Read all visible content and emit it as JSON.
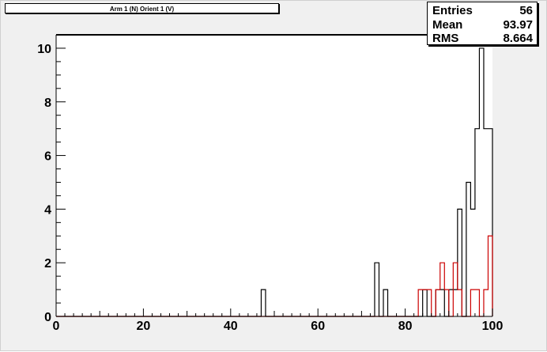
{
  "chart_data": {
    "type": "histogram",
    "title": "Arm 1 (N) Orient 1 (V)",
    "xlim": [
      0,
      100
    ],
    "ylim": [
      0,
      10.5
    ],
    "x_ticks": [
      0,
      20,
      40,
      60,
      80,
      100
    ],
    "y_ticks": [
      0,
      2,
      4,
      6,
      8,
      10
    ],
    "bin_width": 1,
    "grid": false,
    "stats": {
      "entries_label": "Entries",
      "entries": "56",
      "mean_label": "Mean",
      "mean": "93.97",
      "rms_label": "RMS",
      "rms": "8.664"
    },
    "series": [
      {
        "color": "#000000",
        "bins": [
          [
            47,
            1
          ],
          [
            73,
            2
          ],
          [
            75,
            1
          ],
          [
            84,
            1
          ],
          [
            87,
            1
          ],
          [
            88,
            1
          ],
          [
            90,
            1
          ],
          [
            91,
            1
          ],
          [
            92,
            4
          ],
          [
            94,
            5
          ],
          [
            95,
            4
          ],
          [
            96,
            7
          ],
          [
            97,
            10
          ],
          [
            98,
            7
          ],
          [
            99,
            7
          ]
        ]
      },
      {
        "color": "#cc0000",
        "bins": [
          [
            83,
            1
          ],
          [
            84,
            1
          ],
          [
            85,
            1
          ],
          [
            87,
            1
          ],
          [
            88,
            2
          ],
          [
            89,
            1
          ],
          [
            91,
            2
          ],
          [
            92,
            1
          ],
          [
            95,
            1
          ],
          [
            96,
            1
          ],
          [
            98,
            1
          ],
          [
            99,
            3
          ]
        ]
      }
    ]
  }
}
